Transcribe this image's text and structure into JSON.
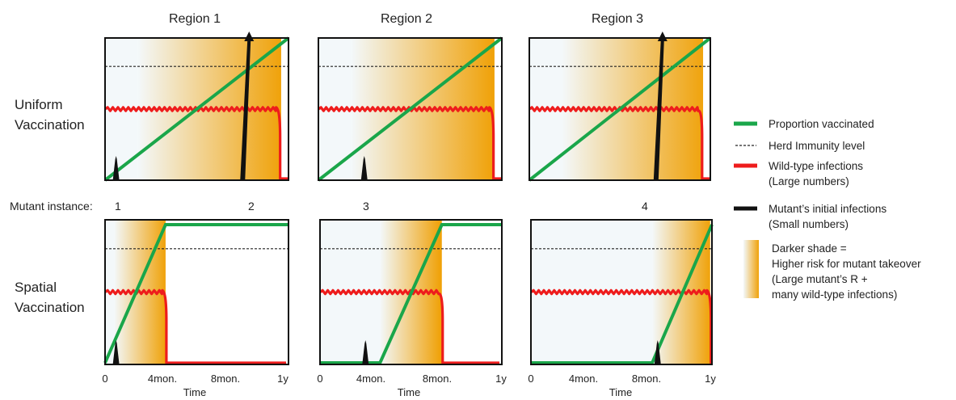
{
  "columns": [
    "Region 1",
    "Region 2",
    "Region 3"
  ],
  "rows": [
    {
      "line1": "Uniform",
      "line2": "Vaccination"
    },
    {
      "line1": "Spatial",
      "line2": "Vaccination"
    }
  ],
  "mutant": {
    "label": "Mutant instance:",
    "instances": [
      "1",
      "2",
      "3",
      "4"
    ]
  },
  "axis": {
    "ticks": [
      "0",
      "4mon.",
      "8mon.",
      "1y"
    ],
    "xlabel": "Time"
  },
  "legend": {
    "vaccinated": "Proportion vaccinated",
    "herd": "Herd Immunity level",
    "wild_1": "Wild-type infections",
    "wild_2": "(Large numbers)",
    "mutant_1": "Mutant’s initial infections",
    "mutant_2": "(Small numbers)",
    "shade_1": "Darker shade =",
    "shade_2": "Higher risk for mutant takeover",
    "shade_3": "(Large mutant’s R  +",
    "shade_4": " many wild-type infections)"
  },
  "colors": {
    "vaccinated": "#1aa64a",
    "herd": "#222222",
    "wild": "#ee1c1c",
    "mutant": "#111111",
    "shade_light": "#f3f8fa",
    "shade_dark": "#f0a20a"
  },
  "panels": [
    {
      "row": "uniform",
      "region": "Region 1",
      "vaccination_start_y": 0.0,
      "vaccination_end_y": 1.0,
      "herd_level": 0.8,
      "wild_drop_y": 0.95,
      "mutant_at_y": [
        0.06,
        0.75
      ],
      "mutant_takeover": [
        false,
        true
      ]
    },
    {
      "row": "uniform",
      "region": "Region 2",
      "vaccination_start_y": 0.0,
      "vaccination_end_y": 1.0,
      "herd_level": 0.8,
      "wild_drop_y": 0.95,
      "mutant_at_y": [
        0.25
      ],
      "mutant_takeover": [
        false
      ]
    },
    {
      "row": "uniform",
      "region": "Region 3",
      "vaccination_start_y": 0.0,
      "vaccination_end_y": 1.0,
      "herd_level": 0.8,
      "wild_drop_y": 0.95,
      "mutant_at_y": [
        0.7
      ],
      "mutant_takeover": [
        true
      ]
    },
    {
      "row": "spatial",
      "region": "Region 1",
      "vaccination_start_y": 0.0,
      "vaccination_end_y": 0.33,
      "herd_level": 0.8,
      "wild_drop_y": 0.33,
      "mutant_at_y": [
        0.06
      ],
      "mutant_takeover": [
        false
      ]
    },
    {
      "row": "spatial",
      "region": "Region 2",
      "vaccination_start_y": 0.33,
      "vaccination_end_y": 0.67,
      "herd_level": 0.8,
      "wild_drop_y": 0.67,
      "mutant_at_y": [
        0.25
      ],
      "mutant_takeover": [
        false
      ]
    },
    {
      "row": "spatial",
      "region": "Region 3",
      "vaccination_start_y": 0.67,
      "vaccination_end_y": 1.0,
      "herd_level": 0.8,
      "wild_drop_y": 0.99,
      "mutant_at_y": [
        0.7
      ],
      "mutant_takeover": [
        false
      ]
    }
  ]
}
